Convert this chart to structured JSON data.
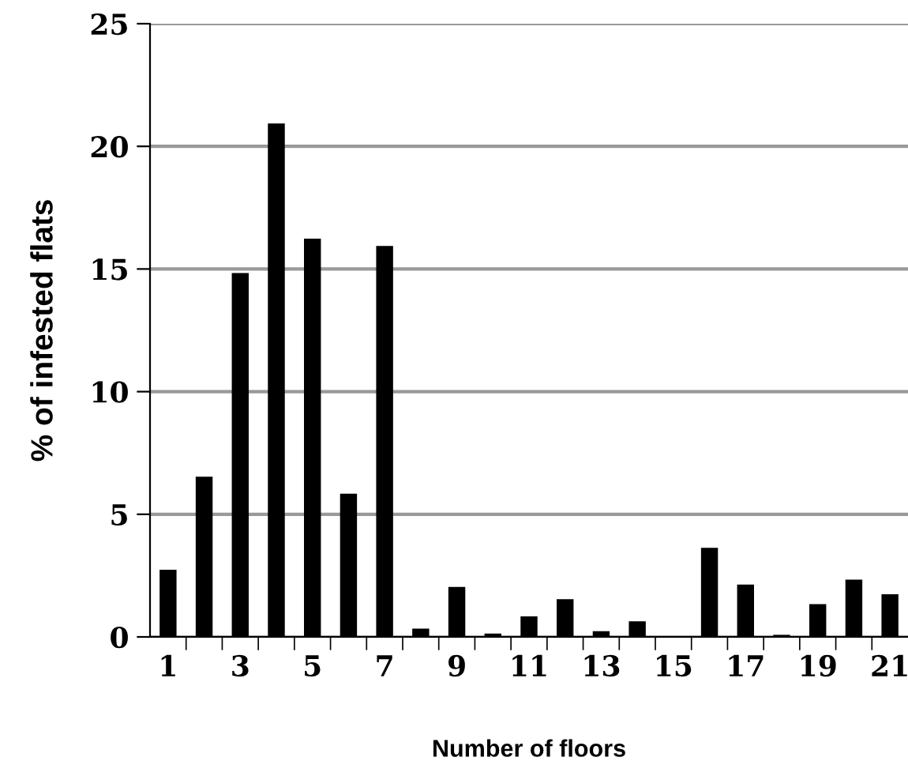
{
  "chart_data": {
    "type": "bar",
    "xlabel": "Number of floors",
    "ylabel": "% of infested flats",
    "categories": [
      "1",
      null,
      "3",
      null,
      "5",
      null,
      "7",
      null,
      "9",
      null,
      "11",
      null,
      "13",
      null,
      "15",
      null,
      "17",
      null,
      "19",
      null,
      "21"
    ],
    "values": [
      2.7,
      6.5,
      14.8,
      20.9,
      16.2,
      5.8,
      15.9,
      0.3,
      2.0,
      0.1,
      0.8,
      1.5,
      0.2,
      0.6,
      0,
      3.6,
      2.1,
      0.05,
      1.3,
      2.3,
      1.7
    ],
    "color": "#000000",
    "ylim": [
      0,
      25
    ],
    "yticks": [
      0,
      5,
      10,
      15,
      20,
      25
    ],
    "grid": "y"
  }
}
